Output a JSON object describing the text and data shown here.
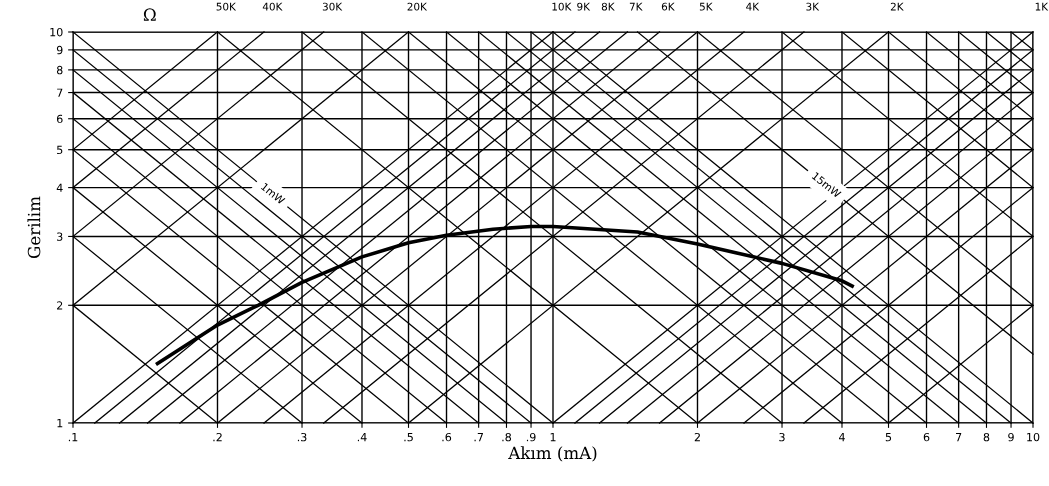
{
  "chart_data": {
    "type": "line",
    "xlabel": "Akım (mA)",
    "ylabel": "Gerilim",
    "log": "xy",
    "xlim": [
      0.1,
      10
    ],
    "ylim": [
      1,
      10
    ],
    "xticks": [
      {
        "value": 0.1,
        "label": ".1"
      },
      {
        "value": 0.2,
        "label": ".2"
      },
      {
        "value": 0.3,
        "label": ".3"
      },
      {
        "value": 0.4,
        "label": ".4"
      },
      {
        "value": 0.5,
        "label": ".5"
      },
      {
        "value": 0.6,
        "label": ".6"
      },
      {
        "value": 0.7,
        "label": ".7"
      },
      {
        "value": 0.8,
        "label": ".8"
      },
      {
        "value": 0.9,
        "label": ".9"
      },
      1,
      2,
      3,
      4,
      5,
      6,
      7,
      8,
      9,
      10
    ],
    "yticks": [
      1,
      2,
      3,
      4,
      5,
      6,
      7,
      8,
      9,
      10
    ],
    "grid": true,
    "marker": "none",
    "line_style": "solid",
    "annotations": [
      "Ω",
      {
        "text": "1mW",
        "x": 0.26,
        "y": 3.85
      },
      {
        "text": "15mW",
        "x": 3.7,
        "y": 4.05
      }
    ],
    "series": [
      {
        "color": "#000000",
        "x": [
          0.15,
          0.2,
          0.243,
          0.3,
          0.4,
          0.5,
          0.6,
          0.75,
          0.9,
          1.0,
          1.5,
          2,
          3,
          4,
          4.2
        ],
        "values": [
          1.42,
          1.78,
          2.0,
          2.29,
          2.66,
          2.89,
          3.02,
          3.13,
          3.18,
          3.18,
          3.08,
          2.87,
          2.56,
          2.31,
          2.24
        ]
      },
      {
        "name": "50K",
        "color": "#000000",
        "x": [
          0.1,
          0.2
        ],
        "values": [
          5,
          10
        ]
      },
      {
        "name": "40K",
        "color": "#000000",
        "x": [
          0.1,
          0.25
        ],
        "values": [
          4,
          10
        ]
      },
      {
        "name": "30K",
        "color": "#000000",
        "x": [
          0.1,
          0.333
        ],
        "values": [
          3,
          10
        ]
      },
      {
        "name": "20K",
        "color": "#000000",
        "x": [
          0.1,
          0.5
        ],
        "values": [
          2,
          10
        ]
      },
      {
        "name": "10K",
        "color": "#000000",
        "x": [
          0.1,
          1
        ],
        "values": [
          1,
          10
        ]
      },
      {
        "name": "9K",
        "color": "#000000",
        "x": [
          0.111,
          1.111
        ],
        "values": [
          1,
          10
        ]
      },
      {
        "name": "8K",
        "color": "#000000",
        "x": [
          0.125,
          1.25
        ],
        "values": [
          1,
          10
        ]
      },
      {
        "name": "7K",
        "color": "#000000",
        "x": [
          0.143,
          1.429
        ],
        "values": [
          1,
          10
        ]
      },
      {
        "name": "6K",
        "color": "#000000",
        "x": [
          0.167,
          1.667
        ],
        "values": [
          1,
          10
        ]
      },
      {
        "name": "5K",
        "color": "#000000",
        "x": [
          0.2,
          2
        ],
        "values": [
          1,
          10
        ]
      },
      {
        "name": "4K",
        "color": "#000000",
        "x": [
          0.25,
          2.5
        ],
        "values": [
          1,
          10
        ]
      },
      {
        "name": "3K",
        "color": "#000000",
        "x": [
          0.333,
          3.333
        ],
        "values": [
          1,
          10
        ]
      },
      {
        "name": "2K",
        "color": "#000000",
        "x": [
          0.5,
          5
        ],
        "values": [
          1,
          10
        ]
      },
      {
        "name": "1K",
        "color": "#000000",
        "x": [
          1,
          10
        ],
        "values": [
          1,
          10
        ]
      },
      {
        "color": "#000000",
        "x": [
          1.111,
          10
        ],
        "values": [
          1,
          9
        ]
      },
      {
        "color": "#000000",
        "x": [
          1.25,
          10
        ],
        "values": [
          1,
          8
        ]
      },
      {
        "color": "#000000",
        "x": [
          1.429,
          10
        ],
        "values": [
          1,
          7
        ]
      },
      {
        "color": "#000000",
        "x": [
          1.667,
          10
        ],
        "values": [
          1,
          6
        ]
      },
      {
        "color": "#000000",
        "x": [
          2,
          10
        ],
        "values": [
          1,
          5
        ]
      },
      {
        "color": "#000000",
        "x": [
          2.5,
          10
        ],
        "values": [
          1,
          4
        ]
      },
      {
        "color": "#000000",
        "x": [
          3.333,
          10
        ],
        "values": [
          1,
          3
        ]
      },
      {
        "color": "#000000",
        "x": [
          5,
          10
        ],
        "values": [
          1,
          2
        ]
      },
      {
        "color": "#000000",
        "x": [
          0.1,
          0.2
        ],
        "values": [
          2,
          1
        ]
      },
      {
        "color": "#000000",
        "x": [
          0.1,
          0.3
        ],
        "values": [
          3,
          1
        ]
      },
      {
        "color": "#000000",
        "x": [
          0.1,
          0.4
        ],
        "values": [
          4,
          1
        ]
      },
      {
        "color": "#000000",
        "x": [
          0.1,
          0.5
        ],
        "values": [
          5,
          1
        ]
      },
      {
        "color": "#000000",
        "x": [
          0.1,
          0.6
        ],
        "values": [
          6,
          1
        ]
      },
      {
        "color": "#000000",
        "x": [
          0.1,
          0.7
        ],
        "values": [
          7,
          1
        ]
      },
      {
        "color": "#000000",
        "x": [
          0.1,
          0.8
        ],
        "values": [
          8,
          1
        ]
      },
      {
        "color": "#000000",
        "x": [
          0.1,
          0.9
        ],
        "values": [
          9,
          1
        ]
      },
      {
        "color": "#000000",
        "x": [
          0.1,
          1
        ],
        "values": [
          10,
          1
        ]
      },
      {
        "color": "#000000",
        "x": [
          0.2,
          2
        ],
        "values": [
          10,
          1
        ]
      },
      {
        "color": "#000000",
        "x": [
          0.3,
          3
        ],
        "values": [
          10,
          1
        ]
      },
      {
        "color": "#000000",
        "x": [
          0.4,
          4
        ],
        "values": [
          10,
          1
        ]
      },
      {
        "color": "#000000",
        "x": [
          0.5,
          5
        ],
        "values": [
          10,
          1
        ]
      },
      {
        "color": "#000000",
        "x": [
          0.6,
          6
        ],
        "values": [
          10,
          1
        ]
      },
      {
        "color": "#000000",
        "x": [
          0.7,
          7
        ],
        "values": [
          10,
          1
        ]
      },
      {
        "color": "#000000",
        "x": [
          0.8,
          8
        ],
        "values": [
          10,
          1
        ]
      },
      {
        "color": "#000000",
        "x": [
          0.9,
          9
        ],
        "values": [
          10,
          1
        ]
      },
      {
        "color": "#000000",
        "x": [
          1,
          10
        ],
        "values": [
          10,
          1
        ]
      },
      {
        "color": "#000000",
        "x": [
          1.5,
          10
        ],
        "values": [
          10,
          1.5
        ]
      },
      {
        "color": "#000000",
        "x": [
          2,
          10
        ],
        "values": [
          10,
          2
        ]
      },
      {
        "color": "#000000",
        "x": [
          3,
          10
        ],
        "values": [
          10,
          3
        ]
      },
      {
        "color": "#000000",
        "x": [
          4,
          10
        ],
        "values": [
          10,
          4
        ]
      },
      {
        "color": "#000000",
        "x": [
          5,
          10
        ],
        "values": [
          10,
          5
        ]
      },
      {
        "color": "#000000",
        "x": [
          6,
          10
        ],
        "values": [
          10,
          6
        ]
      },
      {
        "color": "#000000",
        "x": [
          7,
          10
        ],
        "values": [
          10,
          7
        ]
      },
      {
        "color": "#000000",
        "x": [
          8,
          10
        ],
        "values": [
          10,
          8
        ]
      },
      {
        "color": "#000000",
        "x": [
          9,
          10
        ],
        "values": [
          10,
          9
        ]
      }
    ]
  }
}
